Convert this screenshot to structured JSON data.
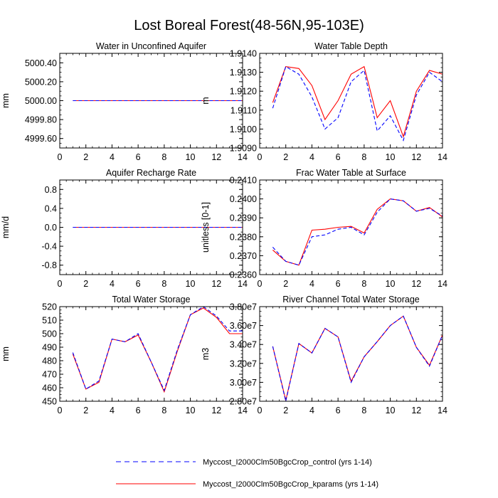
{
  "title": "Lost Boreal Forest(48-56N,95-103E)",
  "colors": {
    "control": "#0000ff",
    "kparams": "#ff0000",
    "frame": "#000000"
  },
  "legend": [
    {
      "label": "Myccost_I2000Clm50BgcCrop_control (yrs 1-14)",
      "color": "#0000ff",
      "style": "dashed"
    },
    {
      "label": "Myccost_I2000Clm50BgcCrop_kparams (yrs 1-14)",
      "color": "#ff0000",
      "style": "solid"
    }
  ],
  "chart_data": [
    {
      "type": "line",
      "title": "Water in Unconfined Aquifer",
      "ylabel": "mm",
      "xlim": [
        0,
        14
      ],
      "ylim": [
        4999.5,
        5000.5
      ],
      "xticks": [
        0,
        2,
        4,
        6,
        8,
        10,
        12,
        14
      ],
      "yticks": [
        4999.6,
        4999.8,
        5000.0,
        5000.2,
        5000.4
      ],
      "ytick_labels": [
        "4999.60",
        "4999.80",
        "5000.00",
        "5000.20",
        "5000.40"
      ],
      "x": [
        1,
        2,
        3,
        4,
        5,
        6,
        7,
        8,
        9,
        10,
        11,
        12,
        13,
        14
      ],
      "series": [
        {
          "name": "control",
          "values": [
            5000,
            5000,
            5000,
            5000,
            5000,
            5000,
            5000,
            5000,
            5000,
            5000,
            5000,
            5000,
            5000,
            5000
          ]
        },
        {
          "name": "kparams",
          "values": [
            5000,
            5000,
            5000,
            5000,
            5000,
            5000,
            5000,
            5000,
            5000,
            5000,
            5000,
            5000,
            5000,
            5000
          ]
        }
      ]
    },
    {
      "type": "line",
      "title": "Water Table Depth",
      "ylabel": "m",
      "xlim": [
        0,
        14
      ],
      "ylim": [
        1.909,
        1.914
      ],
      "xticks": [
        0,
        2,
        4,
        6,
        8,
        10,
        12,
        14
      ],
      "yticks": [
        1.909,
        1.91,
        1.911,
        1.912,
        1.913,
        1.914
      ],
      "ytick_labels": [
        "1.9090",
        "1.9100",
        "1.9110",
        "1.9120",
        "1.9130",
        "1.9140"
      ],
      "x": [
        1,
        2,
        3,
        4,
        5,
        6,
        7,
        8,
        9,
        10,
        11,
        12,
        13,
        14
      ],
      "series": [
        {
          "name": "control",
          "values": [
            1.9111,
            1.9133,
            1.9129,
            1.9117,
            1.91,
            1.9106,
            1.9125,
            1.9131,
            1.9099,
            1.9107,
            1.9094,
            1.9118,
            1.913,
            1.9125
          ]
        },
        {
          "name": "kparams",
          "values": [
            1.9114,
            1.9133,
            1.9132,
            1.9123,
            1.9105,
            1.9115,
            1.9129,
            1.9133,
            1.9106,
            1.9115,
            1.9096,
            1.912,
            1.9131,
            1.9129
          ]
        }
      ]
    },
    {
      "type": "line",
      "title": "Aquifer Recharge Rate",
      "ylabel": "mm/d",
      "xlim": [
        0,
        14
      ],
      "ylim": [
        -1,
        1
      ],
      "xticks": [
        0,
        2,
        4,
        6,
        8,
        10,
        12,
        14
      ],
      "yticks": [
        -0.8,
        -0.4,
        0.0,
        0.4,
        0.8
      ],
      "ytick_labels": [
        "-0.8",
        "-0.4",
        "0.0",
        "0.4",
        "0.8"
      ],
      "x": [
        1,
        2,
        3,
        4,
        5,
        6,
        7,
        8,
        9,
        10,
        11,
        12,
        13,
        14
      ],
      "series": [
        {
          "name": "control",
          "values": [
            0,
            0,
            0,
            0,
            0,
            0,
            0,
            0,
            0,
            0,
            0,
            0,
            0,
            0
          ]
        },
        {
          "name": "kparams",
          "values": [
            0,
            0,
            0,
            0,
            0,
            0,
            0,
            0,
            0,
            0,
            0,
            0,
            0,
            0
          ]
        }
      ]
    },
    {
      "type": "line",
      "title": "Frac Water Table at Surface",
      "ylabel": "unitless [0-1]",
      "xlim": [
        0,
        14
      ],
      "ylim": [
        0.236,
        0.241
      ],
      "xticks": [
        0,
        2,
        4,
        6,
        8,
        10,
        12,
        14
      ],
      "yticks": [
        0.236,
        0.237,
        0.238,
        0.239,
        0.24,
        0.241
      ],
      "ytick_labels": [
        "0.2360",
        "0.2370",
        "0.2380",
        "0.2390",
        "0.2400",
        "0.2410"
      ],
      "x": [
        1,
        2,
        3,
        4,
        5,
        6,
        7,
        8,
        9,
        10,
        11,
        12,
        13,
        14
      ],
      "series": [
        {
          "name": "control",
          "values": [
            0.23745,
            0.2367,
            0.2365,
            0.238,
            0.2381,
            0.2384,
            0.2385,
            0.2381,
            0.2393,
            0.24,
            0.2399,
            0.23935,
            0.2395,
            0.2391
          ]
        },
        {
          "name": "kparams",
          "values": [
            0.2373,
            0.2367,
            0.2365,
            0.23835,
            0.2384,
            0.2385,
            0.23855,
            0.2382,
            0.23945,
            0.24,
            0.2399,
            0.23935,
            0.23955,
            0.23905
          ]
        }
      ]
    },
    {
      "type": "line",
      "title": "Total Water Storage",
      "ylabel": "mm",
      "xlim": [
        0,
        14
      ],
      "ylim": [
        450,
        520
      ],
      "xticks": [
        0,
        2,
        4,
        6,
        8,
        10,
        12,
        14
      ],
      "yticks": [
        450,
        460,
        470,
        480,
        490,
        500,
        510,
        520
      ],
      "ytick_labels": [
        "450",
        "460",
        "470",
        "480",
        "490",
        "500",
        "510",
        "520"
      ],
      "x": [
        1,
        2,
        3,
        4,
        5,
        6,
        7,
        8,
        9,
        10,
        11,
        12,
        13,
        14
      ],
      "series": [
        {
          "name": "control",
          "values": [
            486,
            459,
            465,
            496,
            494,
            500,
            479,
            458,
            488,
            514,
            520,
            513,
            502,
            502
          ]
        },
        {
          "name": "kparams",
          "values": [
            485,
            459,
            464,
            496,
            494,
            499,
            479,
            457,
            487,
            514,
            519,
            512,
            500,
            500
          ]
        }
      ]
    },
    {
      "type": "line",
      "title": "River Channel Total Water Storage",
      "ylabel": "m3",
      "xlim": [
        0,
        14
      ],
      "ylim": [
        28000000.0,
        38000000.0
      ],
      "xticks": [
        0,
        2,
        4,
        6,
        8,
        10,
        12,
        14
      ],
      "yticks": [
        28000000.0,
        30000000.0,
        32000000.0,
        34000000.0,
        36000000.0,
        38000000.0
      ],
      "ytick_labels": [
        "2.80e7",
        "3.00e7",
        "3.20e7",
        "3.40e7",
        "3.60e7",
        "3.80e7"
      ],
      "x": [
        1,
        2,
        3,
        4,
        5,
        6,
        7,
        8,
        9,
        10,
        11,
        12,
        13,
        14
      ],
      "series": [
        {
          "name": "control",
          "values": [
            33800000.0,
            28000000.0,
            34100000.0,
            33100000.0,
            35700000.0,
            34800000.0,
            30000000.0,
            32700000.0,
            34300000.0,
            36000000.0,
            37000000.0,
            33700000.0,
            31700000.0,
            35000000.0
          ]
        },
        {
          "name": "kparams",
          "values": [
            33800000.0,
            28100000.0,
            34100000.0,
            33100000.0,
            35700000.0,
            34800000.0,
            30100000.0,
            32700000.0,
            34300000.0,
            36000000.0,
            37000000.0,
            33700000.0,
            31800000.0,
            35000000.0
          ]
        }
      ]
    }
  ]
}
